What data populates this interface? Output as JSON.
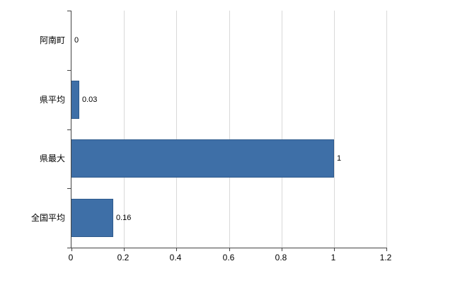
{
  "colors": {
    "bar_fill": "#3e6fa7",
    "bar_border": "#2e5a8c",
    "axis": "#444444",
    "gridline": "#d9d9d9",
    "label_text": "#000000",
    "background": "#ffffff"
  },
  "chart_data": {
    "type": "bar",
    "orientation": "horizontal",
    "title": "",
    "xlabel": "",
    "ylabel": "",
    "categories": [
      "阿南町",
      "県平均",
      "県最大",
      "全国平均"
    ],
    "values": [
      0,
      0.03,
      1,
      0.16
    ],
    "value_labels": [
      "0",
      "0.03",
      "1",
      "0.16"
    ],
    "xlim": [
      0,
      1.2
    ],
    "xticks": [
      0,
      0.2,
      0.4,
      0.6,
      0.8,
      1,
      1.2
    ],
    "xtick_labels": [
      "0",
      "0.2",
      "0.4",
      "0.6",
      "0.8",
      "1",
      "1.2"
    ],
    "grid": "vertical",
    "legend_position": "none"
  }
}
